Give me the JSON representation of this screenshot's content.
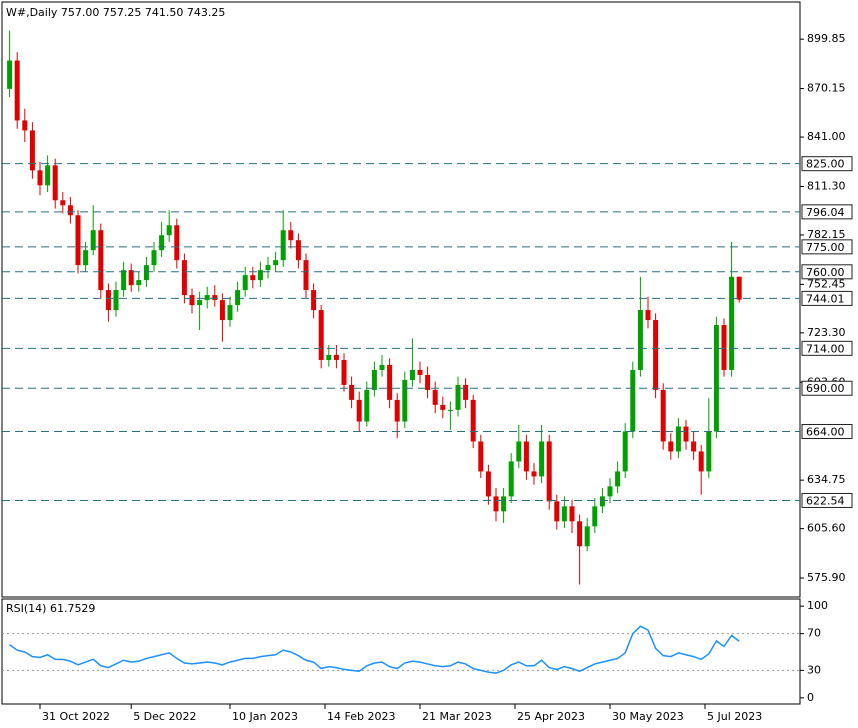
{
  "chart_data": [
    {
      "type": "candlestick",
      "title": "W#,Daily  757.00 757.25 741.50 743.25",
      "open": [
        870,
        887,
        851,
        845,
        821,
        812,
        824,
        803,
        800,
        794,
        764,
        773,
        785,
        749,
        737,
        749,
        761,
        752,
        755,
        764,
        773,
        782,
        788,
        767,
        746,
        740,
        743,
        746,
        743,
        731,
        740,
        749,
        758,
        755,
        761,
        764,
        767,
        785,
        779,
        767,
        749,
        737,
        707,
        710,
        707,
        692,
        683,
        670,
        689,
        701,
        704,
        683,
        670,
        695,
        701,
        698,
        689,
        680,
        677,
        677,
        692,
        683,
        658,
        640,
        625,
        616,
        625,
        646,
        658,
        640,
        637,
        658,
        622,
        610,
        619,
        610,
        595,
        607,
        619,
        625,
        631,
        640,
        664,
        701,
        737,
        731,
        689,
        658,
        652,
        667,
        658,
        652,
        640,
        664,
        728,
        701,
        757
      ],
      "high": [
        905,
        892,
        858,
        850,
        826,
        830,
        828,
        808,
        805,
        797,
        778,
        800,
        789,
        753,
        754,
        766,
        765,
        760,
        769,
        778,
        790,
        797,
        792,
        771,
        750,
        748,
        751,
        752,
        747,
        745,
        754,
        763,
        763,
        766,
        769,
        772,
        797,
        790,
        783,
        771,
        753,
        740,
        716,
        716,
        711,
        697,
        688,
        694,
        706,
        710,
        708,
        687,
        700,
        720,
        706,
        703,
        694,
        685,
        682,
        697,
        696,
        686,
        662,
        644,
        630,
        630,
        651,
        668,
        662,
        645,
        668,
        662,
        626,
        625,
        623,
        614,
        612,
        624,
        630,
        636,
        646,
        669,
        706,
        757,
        745,
        735,
        693,
        663,
        672,
        671,
        664,
        656,
        684,
        733,
        732,
        778,
        757.25
      ],
      "low": [
        865,
        846,
        838,
        816,
        806,
        808,
        798,
        795,
        789,
        759,
        760,
        770,
        744,
        730,
        733,
        745,
        748,
        748,
        751,
        760,
        769,
        778,
        762,
        741,
        735,
        725,
        738,
        739,
        718,
        727,
        736,
        745,
        750,
        751,
        756,
        760,
        763,
        774,
        762,
        744,
        732,
        702,
        703,
        702,
        688,
        678,
        664,
        667,
        685,
        697,
        678,
        660,
        666,
        691,
        693,
        684,
        675,
        672,
        665,
        673,
        678,
        654,
        636,
        620,
        610,
        609,
        621,
        642,
        635,
        632,
        633,
        617,
        605,
        606,
        603,
        572,
        592,
        603,
        615,
        621,
        627,
        636,
        660,
        697,
        726,
        684,
        653,
        647,
        648,
        653,
        647,
        626,
        636,
        660,
        697,
        697,
        741.5
      ],
      "close": [
        887,
        851,
        845,
        821,
        812,
        824,
        803,
        800,
        794,
        764,
        773,
        785,
        749,
        737,
        749,
        761,
        752,
        755,
        764,
        773,
        782,
        788,
        767,
        746,
        740,
        743,
        746,
        743,
        731,
        740,
        749,
        758,
        755,
        761,
        764,
        767,
        785,
        779,
        767,
        749,
        737,
        707,
        710,
        707,
        692,
        683,
        670,
        689,
        701,
        704,
        683,
        670,
        695,
        701,
        698,
        689,
        680,
        677,
        677,
        692,
        683,
        658,
        640,
        625,
        616,
        625,
        646,
        658,
        640,
        637,
        658,
        622,
        610,
        619,
        610,
        595,
        607,
        619,
        625,
        631,
        640,
        664,
        701,
        737,
        731,
        689,
        658,
        652,
        667,
        658,
        652,
        640,
        664,
        728,
        701,
        757,
        743.25
      ],
      "up_color": "#00a000",
      "down_color": "#e00000",
      "ylim": [
        564.5,
        922.2
      ],
      "yticks": [
        899.85,
        870.15,
        {
          "value": 841,
          "label": "841.00"
        },
        {
          "value": 811.3,
          "label": "811.30"
        },
        782.15,
        752.45,
        {
          "value": 723.3,
          "label": "723.30"
        },
        {
          "value": 693.6,
          "label": "693.60"
        },
        634.75,
        {
          "value": 605.6,
          "label": "605.60"
        },
        {
          "value": 575.9,
          "label": "575.90"
        }
      ],
      "levels": [
        {
          "value": 825,
          "label": "825.00"
        },
        796.04,
        {
          "value": 775,
          "label": "775.00"
        },
        {
          "value": 760,
          "label": "760.00"
        },
        744.01,
        {
          "value": 714,
          "label": "714.00"
        },
        {
          "value": 690,
          "label": "690.00"
        },
        {
          "value": 664,
          "label": "664.00"
        },
        622.54
      ],
      "level_color": "#2b6f80",
      "xlim": [
        -1,
        104
      ],
      "xticks": [
        {
          "value": 4,
          "label": "31 Oct 2022"
        },
        {
          "value": 16,
          "label": "5 Dec 2022"
        },
        {
          "value": 29,
          "label": "10 Jan 2023"
        },
        {
          "value": 41.5,
          "label": "14 Feb 2023"
        },
        {
          "value": 54,
          "label": "21 Mar 2023"
        },
        {
          "value": 66.5,
          "label": "25 Apr 2023"
        },
        {
          "value": 79,
          "label": "30 May 2023"
        },
        {
          "value": 91.5,
          "label": "5 Jul 2023"
        }
      ]
    },
    {
      "type": "line",
      "title": "RSI(14) 61.7529",
      "values": [
        58,
        52,
        50,
        45,
        44,
        47,
        42,
        42,
        40,
        36,
        39,
        42,
        35,
        33,
        37,
        41,
        39,
        40,
        43,
        45,
        47,
        49,
        43,
        38,
        37,
        38,
        39,
        38,
        36,
        39,
        41,
        43,
        43,
        45,
        46,
        47,
        52,
        50,
        46,
        41,
        39,
        32,
        34,
        33,
        31,
        30,
        29,
        35,
        38,
        39,
        34,
        32,
        38,
        40,
        39,
        37,
        35,
        34,
        35,
        39,
        37,
        32,
        30,
        28,
        27,
        30,
        36,
        39,
        35,
        35,
        41,
        33,
        31,
        34,
        32,
        29,
        33,
        37,
        39,
        41,
        43,
        49,
        70,
        78,
        74,
        54,
        46,
        45,
        49,
        47,
        45,
        42,
        48,
        62,
        56,
        68,
        61.7529
      ],
      "color": "#1e90ff",
      "ylim": [
        -6.7,
        107.8
      ],
      "yticks": [
        100,
        70,
        30,
        0
      ],
      "levels": [
        70,
        30
      ]
    }
  ]
}
